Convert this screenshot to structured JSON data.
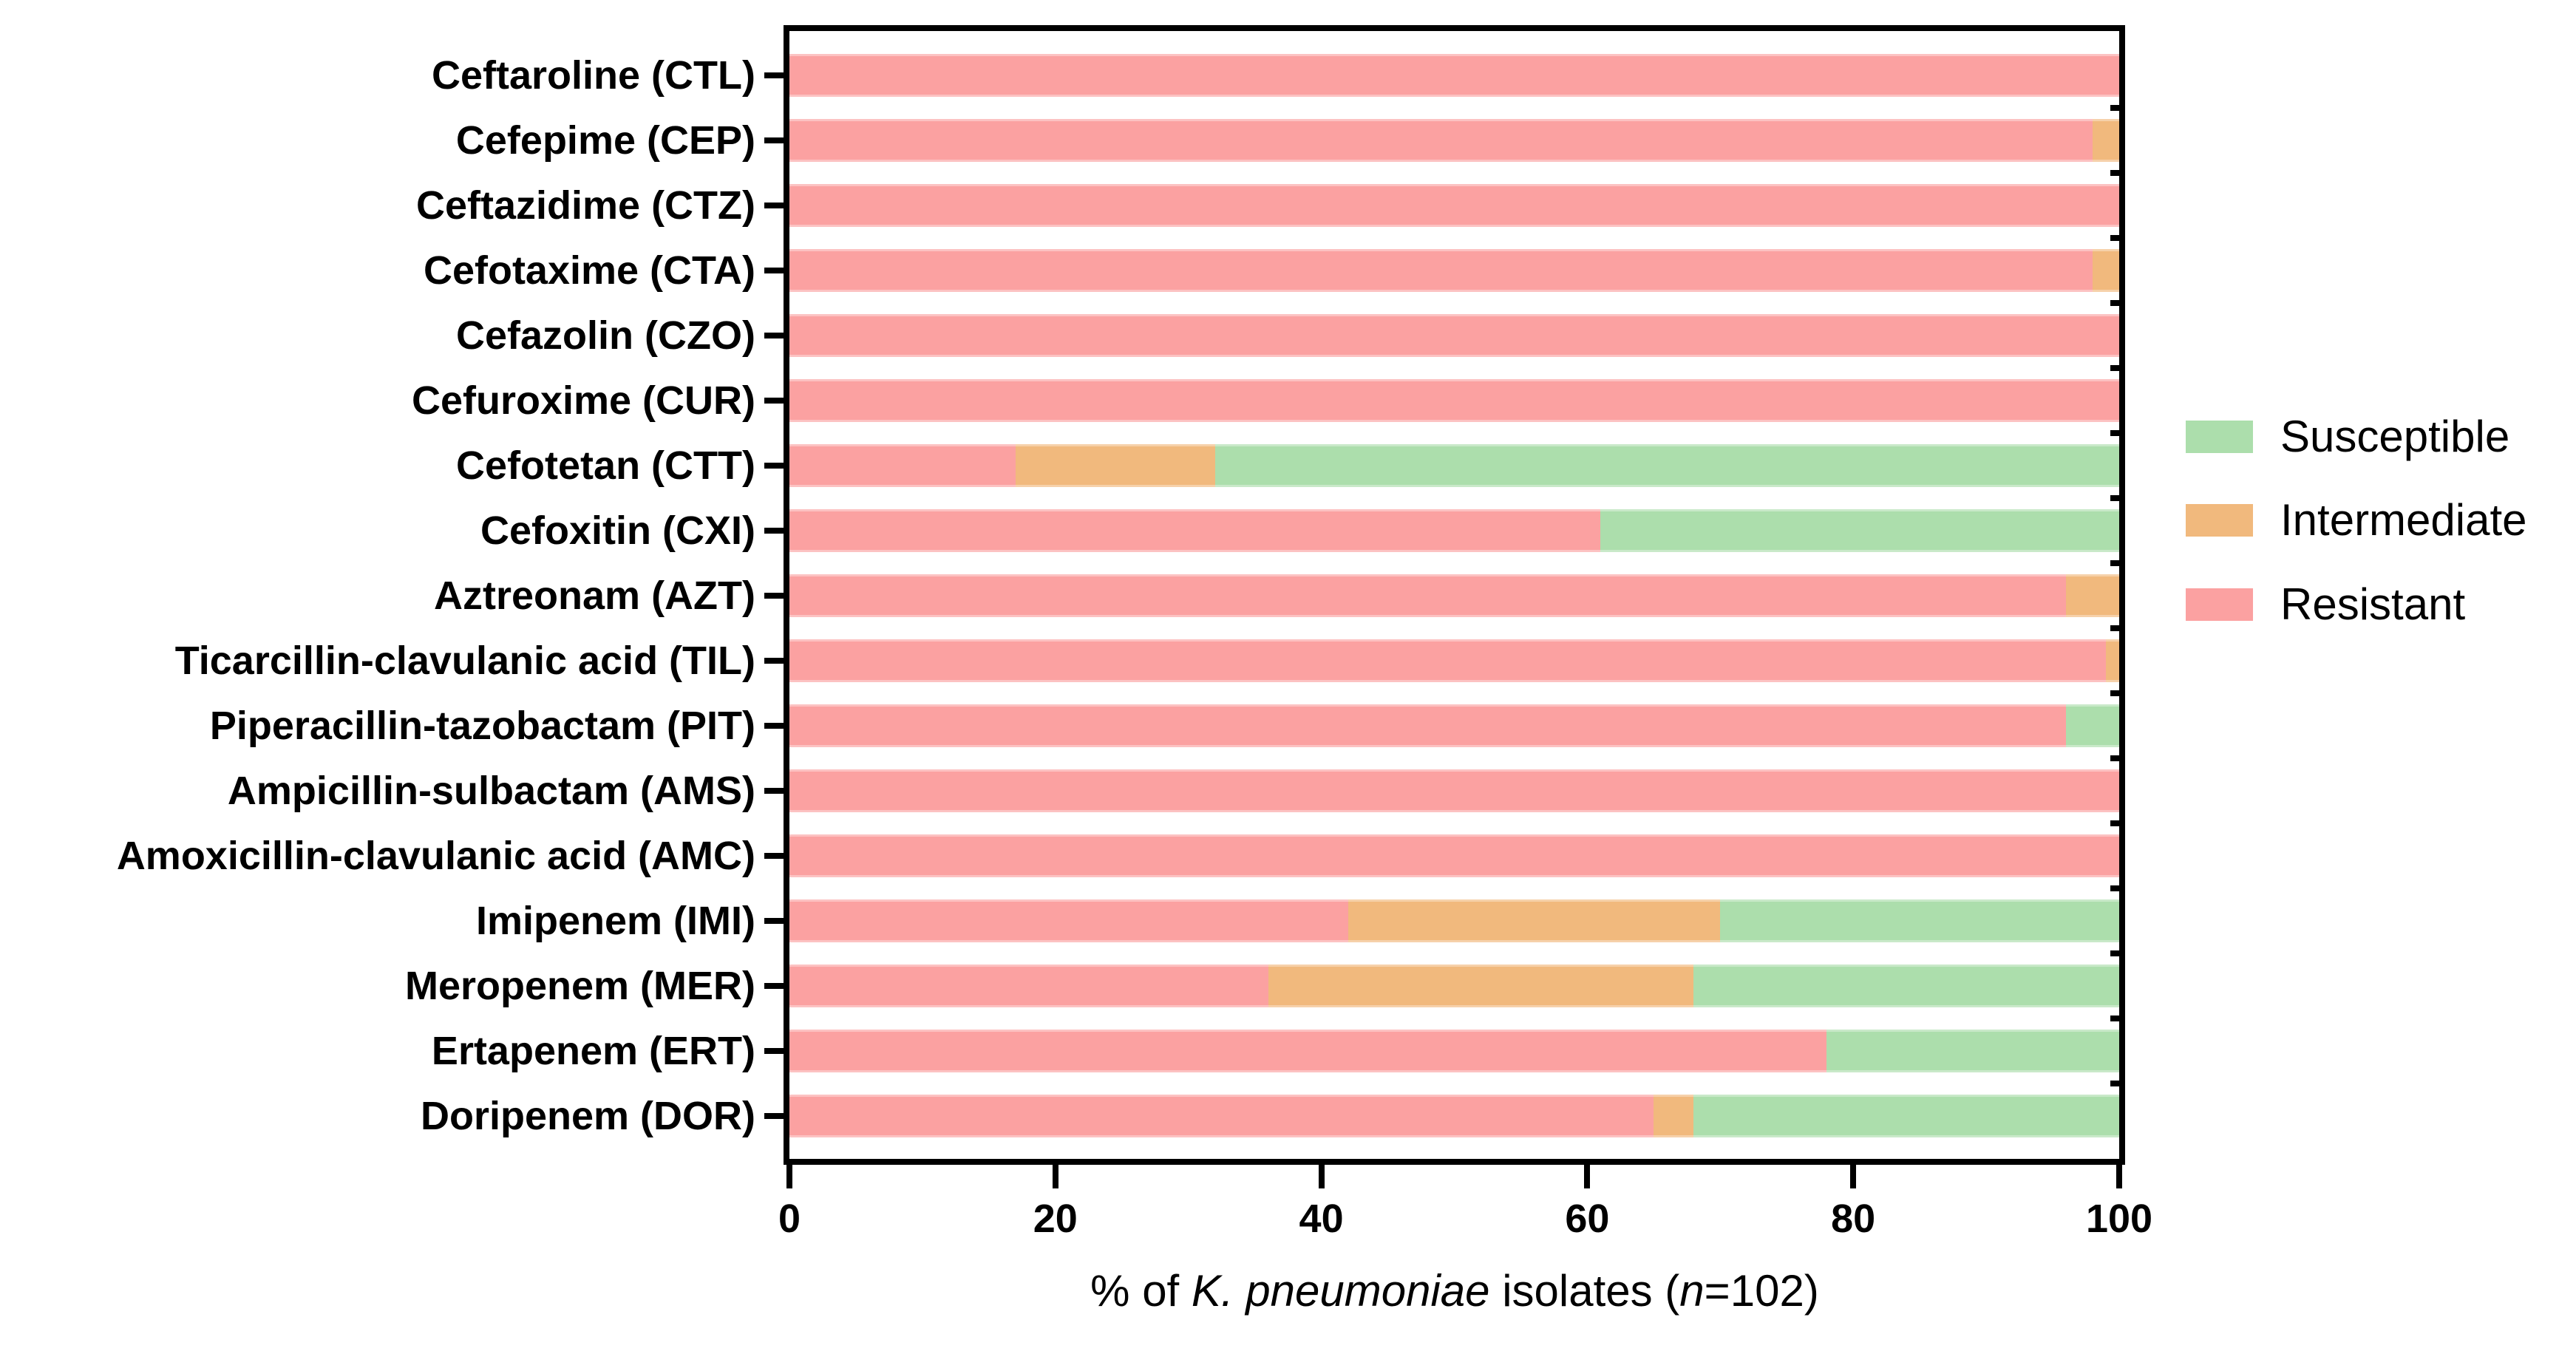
{
  "figure": {
    "kind": "horizontal stacked bar chart",
    "background": "#FFFFFF"
  },
  "colors": {
    "susceptible": "#ACDEAC",
    "intermediate": "#F1B97D",
    "resistant": "#FBA1A1",
    "axis": "#000000"
  },
  "legend": {
    "position": "right",
    "items": [
      {
        "label": "Susceptible",
        "color": "#ACDEAC"
      },
      {
        "label": "Intermediate",
        "color": "#F1B97D"
      },
      {
        "label": "Resistant",
        "color": "#FBA1A1"
      }
    ]
  },
  "x_axis": {
    "ticks": [
      0,
      20,
      40,
      60,
      80,
      100
    ],
    "range": [
      0,
      100
    ],
    "title_plain": "% of K. pneumoniae isolates (n=102)",
    "title_parts": [
      {
        "text": "% of ",
        "italic": false
      },
      {
        "text": "K. pneumoniae",
        "italic": true
      },
      {
        "text": " isolates (",
        "italic": false
      },
      {
        "text": "n",
        "italic": true
      },
      {
        "text": "=102)",
        "italic": false
      }
    ]
  },
  "chart_data": {
    "type": "bar",
    "orientation": "horizontal",
    "stacked": true,
    "n_isolates": 102,
    "title": "",
    "xlabel": "% of K. pneumoniae isolates (n=102)",
    "ylabel": "",
    "xlim": [
      0,
      100
    ],
    "grid": false,
    "legend_position": "right",
    "stack_order_from_axis": [
      "Resistant",
      "Intermediate",
      "Susceptible"
    ],
    "categories": [
      "Ceftaroline (CTL)",
      "Cefepime (CEP)",
      "Ceftazidime (CTZ)",
      "Cefotaxime (CTA)",
      "Cefazolin (CZO)",
      "Cefuroxime (CUR)",
      "Cefotetan (CTT)",
      "Cefoxitin (CXI)",
      "Aztreonam (AZT)",
      "Ticarcillin-clavulanic acid (TIL)",
      "Piperacillin-tazobactam (PIT)",
      "Ampicillin-sulbactam (AMS)",
      "Amoxicillin-clavulanic acid (AMC)",
      "Imipenem (IMI)",
      "Meropenem (MER)",
      "Ertapenem (ERT)",
      "Doripenem (DOR)"
    ],
    "series": [
      {
        "name": "Resistant",
        "color": "#FBA1A1",
        "values": [
          100,
          98,
          100,
          98,
          100,
          100,
          17,
          61,
          96,
          99,
          96,
          100,
          100,
          42,
          36,
          78,
          65
        ]
      },
      {
        "name": "Intermediate",
        "color": "#F1B97D",
        "values": [
          0,
          2,
          0,
          2,
          0,
          0,
          15,
          0,
          4,
          1,
          0,
          0,
          0,
          28,
          32,
          0,
          3
        ]
      },
      {
        "name": "Susceptible",
        "color": "#ACDEAC",
        "values": [
          0,
          0,
          0,
          0,
          0,
          0,
          68,
          39,
          0,
          0,
          4,
          0,
          0,
          30,
          32,
          22,
          32
        ]
      }
    ]
  }
}
